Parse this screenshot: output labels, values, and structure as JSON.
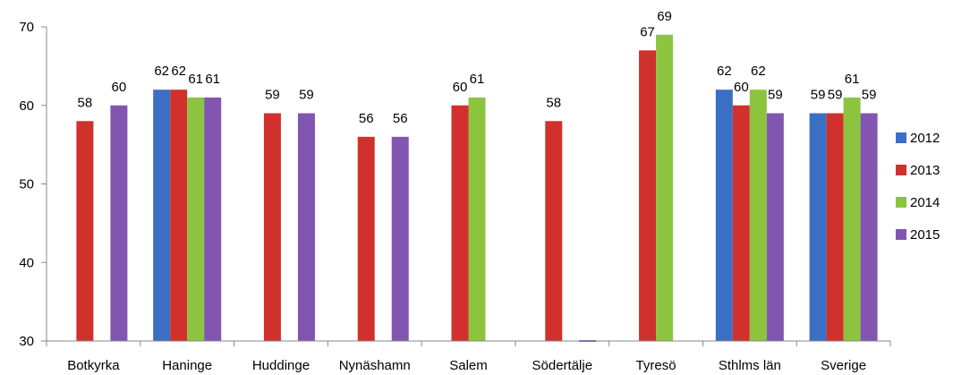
{
  "chart_data": {
    "type": "bar",
    "categories": [
      "Botkyrka",
      "Haninge",
      "Huddinge",
      "Nynäshamn",
      "Salem",
      "Södertälje",
      "Tyresö",
      "Sthlms län",
      "Sverige"
    ],
    "series": [
      {
        "name": "2012",
        "color": "#3A6FC4",
        "values": [
          null,
          62,
          null,
          null,
          null,
          null,
          null,
          62,
          59
        ]
      },
      {
        "name": "2013",
        "color": "#D0312D",
        "values": [
          58,
          62,
          59,
          56,
          60,
          58,
          67,
          60,
          59
        ]
      },
      {
        "name": "2014",
        "color": "#8CC43F",
        "values": [
          null,
          61,
          null,
          null,
          61,
          null,
          69,
          62,
          61
        ]
      },
      {
        "name": "2015",
        "color": "#8256B0",
        "values": [
          60,
          61,
          59,
          56,
          null,
          30,
          null,
          59,
          59
        ]
      }
    ],
    "data_labels": [
      [
        null,
        "62",
        null,
        null,
        null,
        null,
        null,
        "62",
        "59"
      ],
      [
        "58",
        "62",
        "59",
        "56",
        "60",
        "58",
        "67",
        "60",
        "59"
      ],
      [
        null,
        "61",
        null,
        null,
        "61",
        null,
        "69",
        "62",
        "61"
      ],
      [
        "60",
        "61",
        "59",
        "56",
        null,
        null,
        null,
        "59",
        "59"
      ]
    ],
    "yticks": [
      "30",
      "40",
      "50",
      "60",
      "70"
    ],
    "ylim": [
      30,
      70
    ],
    "legend_position": "right",
    "grid": false
  }
}
